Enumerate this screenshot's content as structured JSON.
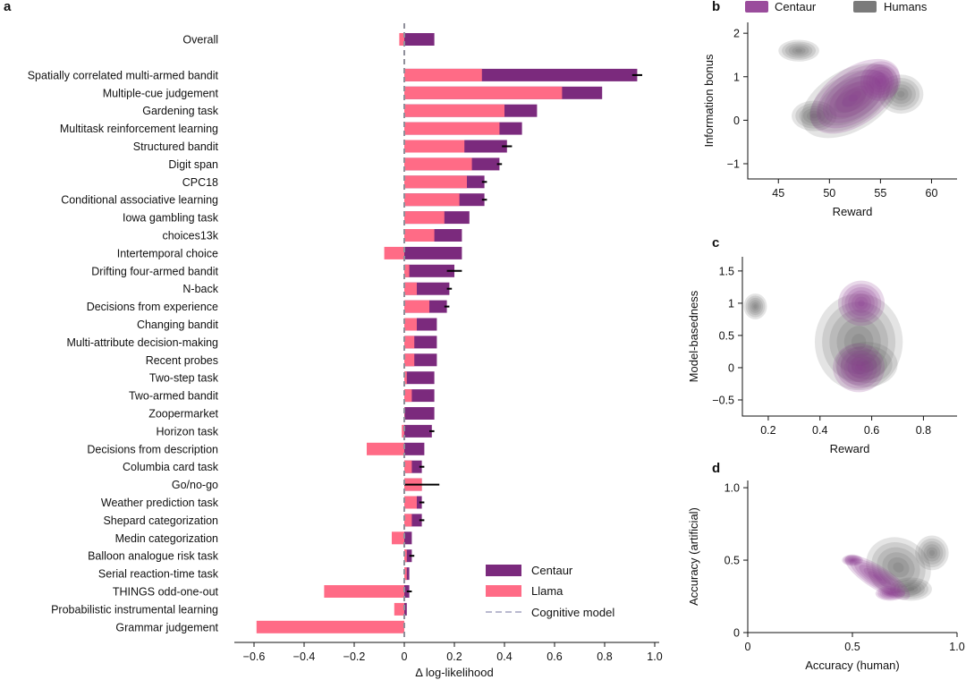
{
  "colors": {
    "centaur": "#7b2a7d",
    "llama": "#ff6b86",
    "cognitive": "#b9b9d0",
    "centaur_kde": "#8e3a8f",
    "human_kde": "#5a5a5a"
  },
  "chart_data": [
    {
      "panel": "a",
      "type": "bar",
      "orientation": "horizontal",
      "xlabel": "Δ log-likelihood",
      "xlim": [
        -0.65,
        1.02
      ],
      "xticks": [
        -0.6,
        -0.4,
        -0.2,
        0,
        0.2,
        0.4,
        0.6,
        0.8,
        1.0
      ],
      "xtick_labels": [
        "−0.6",
        "−0.4",
        "−0.2",
        "0",
        "0.2",
        "0.4",
        "0.6",
        "0.8",
        "1.0"
      ],
      "legend": {
        "placement": "bottom-right",
        "entries": [
          "Centaur",
          "Llama",
          "Cognitive model"
        ]
      },
      "categories": [
        "Overall",
        "Spatially correlated multi-armed bandit",
        "Multiple-cue judgement",
        "Gardening task",
        "Multitask reinforcement learning",
        "Structured bandit",
        "Digit span",
        "CPC18",
        "Conditional associative learning",
        "Iowa gambling task",
        "choices13k",
        "Intertemporal choice",
        "Drifting four-armed bandit",
        "N-back",
        "Decisions from experience",
        "Changing bandit",
        "Multi-attribute decision-making",
        "Recent probes",
        "Two-step task",
        "Two-armed bandit",
        "Zoopermarket",
        "Horizon task",
        "Decisions from description",
        "Columbia card task",
        "Go/no-go",
        "Weather prediction task",
        "Shepard categorization",
        "Medin categorization",
        "Balloon analogue risk task",
        "Serial reaction-time task",
        "THINGS odd-one-out",
        "Probabilistic instrumental learning",
        "Grammar judgement"
      ],
      "series": [
        {
          "name": "Centaur",
          "values": [
            0.12,
            0.93,
            0.79,
            0.53,
            0.47,
            0.41,
            0.38,
            0.32,
            0.32,
            0.26,
            0.23,
            0.23,
            0.2,
            0.18,
            0.17,
            0.13,
            0.13,
            0.13,
            0.12,
            0.12,
            0.12,
            0.11,
            0.08,
            0.07,
            0.07,
            0.07,
            0.07,
            0.03,
            0.03,
            0.02,
            0.02,
            0.01,
            0.0
          ],
          "errors": [
            0.0,
            0.02,
            0.0,
            0.0,
            0.0,
            0.02,
            0.01,
            0.01,
            0.01,
            0.0,
            0.0,
            0.0,
            0.03,
            0.01,
            0.01,
            0.0,
            0.0,
            0.0,
            0.0,
            0.0,
            0.0,
            0.01,
            0.0,
            0.01,
            0.07,
            0.01,
            0.01,
            0.0,
            0.01,
            0.0,
            0.01,
            0.0,
            0.0
          ]
        },
        {
          "name": "Llama",
          "values": [
            -0.02,
            0.31,
            0.63,
            0.4,
            0.38,
            0.24,
            0.27,
            0.25,
            0.22,
            0.16,
            0.12,
            -0.08,
            0.02,
            0.05,
            0.1,
            0.05,
            0.04,
            0.04,
            0.01,
            0.03,
            0.0,
            -0.01,
            -0.15,
            0.03,
            0.07,
            0.05,
            0.03,
            -0.05,
            0.01,
            0.01,
            -0.32,
            -0.04,
            -0.59
          ]
        },
        {
          "name": "Cognitive model",
          "values": [
            0,
            0,
            0,
            0,
            0,
            0,
            0,
            0,
            0,
            0,
            0,
            0,
            0,
            0,
            0,
            0,
            0,
            0,
            0,
            0,
            0,
            0,
            0,
            0,
            0,
            0,
            0,
            0,
            0,
            0,
            0,
            0,
            0
          ]
        }
      ]
    },
    {
      "panel": "b",
      "type": "kde2d",
      "xlabel": "Reward",
      "ylabel": "Information bonus",
      "xlim": [
        42,
        62.5
      ],
      "ylim": [
        -1.35,
        2.25
      ],
      "xticks": [
        45,
        50,
        55,
        60
      ],
      "yticks": [
        -1,
        0,
        1,
        2
      ],
      "legend": {
        "placement": "top",
        "entries": [
          "Centaur",
          "Humans"
        ]
      },
      "series": [
        {
          "name": "Humans",
          "blobs": [
            {
              "cx": 52,
              "cy": 0.45,
              "sx": 5.2,
              "sy": 0.7,
              "rot": 30
            },
            {
              "cx": 48.5,
              "cy": 0.1,
              "sx": 2.2,
              "sy": 0.35,
              "rot": 0
            },
            {
              "cx": 47,
              "cy": 1.6,
              "sx": 2.0,
              "sy": 0.25,
              "rot": 0
            },
            {
              "cx": 57,
              "cy": 0.6,
              "sx": 2.2,
              "sy": 0.45,
              "rot": 0
            }
          ]
        },
        {
          "name": "Centaur",
          "blobs": [
            {
              "cx": 52.5,
              "cy": 0.55,
              "sx": 5.0,
              "sy": 0.65,
              "rot": 35
            },
            {
              "cx": 55.0,
              "cy": 0.9,
              "sx": 2.0,
              "sy": 0.45,
              "rot": 30
            }
          ]
        }
      ]
    },
    {
      "panel": "c",
      "type": "kde2d",
      "xlabel": "Reward",
      "ylabel": "Model-basedness",
      "xlim": [
        0.1,
        0.93
      ],
      "ylim": [
        -0.75,
        1.72
      ],
      "xticks": [
        0.2,
        0.4,
        0.6,
        0.8
      ],
      "yticks": [
        -0.5,
        0,
        0.5,
        1,
        1.5
      ],
      "series": [
        {
          "name": "Humans",
          "blobs": [
            {
              "cx": 0.55,
              "cy": 0.4,
              "sx": 0.17,
              "sy": 0.75,
              "rot": 0
            },
            {
              "cx": 0.15,
              "cy": 0.95,
              "sx": 0.045,
              "sy": 0.2,
              "rot": 0
            },
            {
              "cx": 0.58,
              "cy": 0.05,
              "sx": 0.12,
              "sy": 0.35,
              "rot": 0
            }
          ]
        },
        {
          "name": "Centaur",
          "blobs": [
            {
              "cx": 0.56,
              "cy": 1.0,
              "sx": 0.09,
              "sy": 0.35,
              "rot": 0
            },
            {
              "cx": 0.55,
              "cy": 0.0,
              "sx": 0.1,
              "sy": 0.38,
              "rot": 0
            }
          ]
        }
      ]
    },
    {
      "panel": "d",
      "type": "kde2d",
      "xlabel": "Accuracy (human)",
      "ylabel": "Accuracy (artificial)",
      "xlim": [
        0,
        1.0
      ],
      "ylim": [
        0,
        1.05
      ],
      "xticks": [
        0,
        0.5,
        1.0
      ],
      "xtick_labels": [
        "0",
        "0.5",
        "1.0"
      ],
      "yticks": [
        0,
        0.5,
        1.0
      ],
      "ytick_labels": [
        "0",
        "0.5",
        "1.0"
      ],
      "series": [
        {
          "name": "Humans",
          "blobs": [
            {
              "cx": 0.72,
              "cy": 0.45,
              "sx": 0.16,
              "sy": 0.2,
              "rot": -30
            },
            {
              "cx": 0.88,
              "cy": 0.55,
              "sx": 0.08,
              "sy": 0.12,
              "rot": 0
            },
            {
              "cx": 0.78,
              "cy": 0.3,
              "sx": 0.1,
              "sy": 0.08,
              "rot": 0
            }
          ]
        },
        {
          "name": "Centaur",
          "blobs": [
            {
              "cx": 0.62,
              "cy": 0.38,
              "sx": 0.18,
              "sy": 0.08,
              "rot": -32
            },
            {
              "cx": 0.68,
              "cy": 0.27,
              "sx": 0.07,
              "sy": 0.05,
              "rot": 0
            },
            {
              "cx": 0.5,
              "cy": 0.5,
              "sx": 0.05,
              "sy": 0.04,
              "rot": 0
            }
          ]
        }
      ]
    }
  ]
}
